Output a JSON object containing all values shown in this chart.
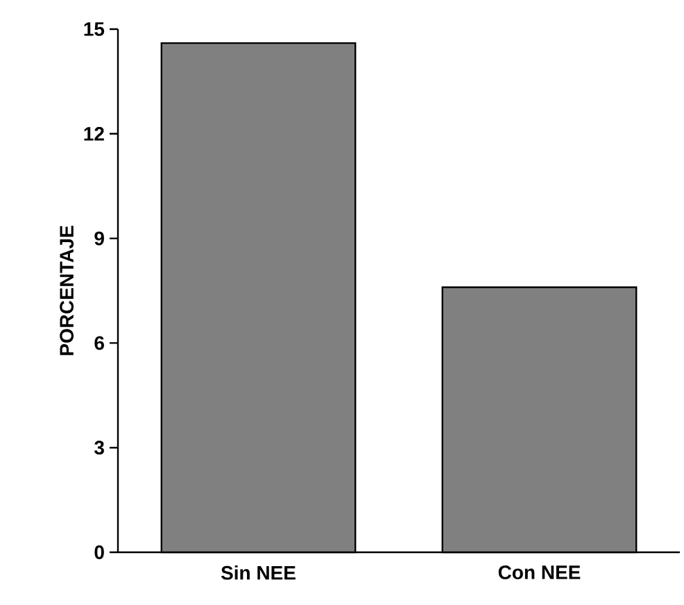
{
  "chart_data": {
    "type": "bar",
    "ylabel": "PORCENTAJE",
    "categories": [
      "Sin NEE",
      "Con NEE"
    ],
    "values": [
      14.6,
      7.6
    ],
    "color": "#808080",
    "ylim": [
      0,
      15
    ],
    "yticks": [
      0,
      3,
      6,
      9,
      12,
      15
    ]
  }
}
